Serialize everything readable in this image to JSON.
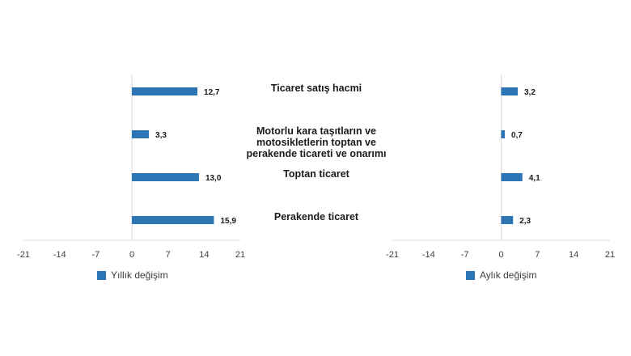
{
  "chart_data": [
    {
      "type": "bar",
      "orientation": "horizontal",
      "categories": [
        "Ticaret satış hacmi",
        "Motorlu kara taşıtların ve motosikletlerin toptan ve perakende ticareti ve onarımı",
        "Toptan ticaret",
        "Perakende ticaret"
      ],
      "series": [
        {
          "name": "Yıllık değişim",
          "values": [
            12.7,
            3.3,
            13.0,
            15.9
          ]
        }
      ],
      "data_labels": [
        "12,7",
        "3,3",
        "13,0",
        "15,9"
      ],
      "xlim": [
        -21,
        21
      ],
      "x_ticks": [
        "-21",
        "-14",
        "-7",
        "0",
        "7",
        "14",
        "21"
      ],
      "grid": false,
      "color": "#2E75B6"
    },
    {
      "type": "bar",
      "orientation": "horizontal",
      "categories": [
        "Ticaret satış hacmi",
        "Motorlu kara taşıtların ve motosikletlerin toptan ve perakende ticareti ve onarımı",
        "Toptan ticaret",
        "Perakende ticaret"
      ],
      "series": [
        {
          "name": "Aylık değişim",
          "values": [
            3.2,
            0.7,
            4.1,
            2.3
          ]
        }
      ],
      "data_labels": [
        "3,2",
        "0,7",
        "4,1",
        "2,3"
      ],
      "xlim": [
        -21,
        21
      ],
      "x_ticks": [
        "-21",
        "-14",
        "-7",
        "0",
        "7",
        "14",
        "21"
      ],
      "grid": false,
      "color": "#2E75B6"
    }
  ],
  "category_labels": [
    [
      "Ticaret satış hacmi"
    ],
    [
      "Motorlu kara taşıtların ve",
      "motosikletlerin toptan ve",
      "perakende ticareti ve onarımı"
    ],
    [
      "Toptan ticaret"
    ],
    [
      "Perakende ticaret"
    ]
  ],
  "legend": {
    "left": {
      "label": "Yıllık değişim",
      "color": "#2E75B6"
    },
    "right": {
      "label": "Aylık değişim",
      "color": "#2E75B6"
    }
  },
  "colors": {
    "axis": "#D9D9D9",
    "text": "#404040"
  }
}
